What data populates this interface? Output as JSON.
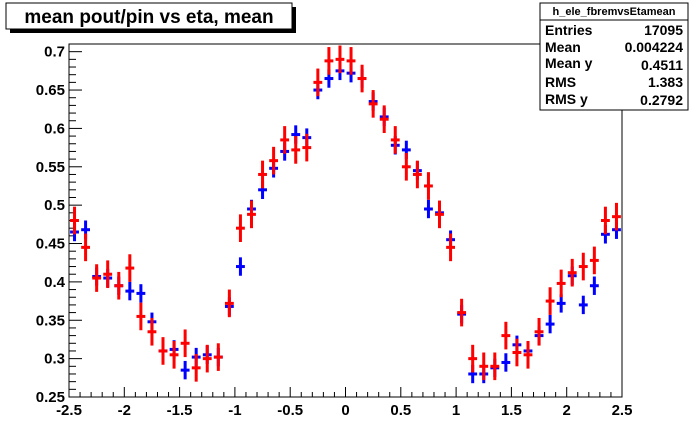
{
  "chart_data": {
    "type": "scatter",
    "title": "mean pout/pin vs eta, mean",
    "xlabel": "",
    "ylabel": "",
    "xlim": [
      -2.5,
      2.5
    ],
    "ylim": [
      0.25,
      0.71
    ],
    "x_ticks": [
      -2.5,
      -2,
      -1.5,
      -1,
      -0.5,
      0,
      0.5,
      1,
      1.5,
      2,
      2.5
    ],
    "x_tick_labels": [
      "-2.5",
      "-2",
      "-1.5",
      "-1",
      "-0.5",
      "0",
      "0.5",
      "1",
      "1.5",
      "2",
      "2.5"
    ],
    "y_ticks": [
      0.25,
      0.3,
      0.35,
      0.4,
      0.45,
      0.5,
      0.55,
      0.6,
      0.65,
      0.7
    ],
    "y_tick_labels": [
      "0.25",
      "0.3",
      "0.35",
      "0.4",
      "0.45",
      "0.5",
      "0.55",
      "0.6",
      "0.65",
      "0.7"
    ],
    "grid": false,
    "legend": "none",
    "x_half_width": 0.04,
    "series": [
      {
        "color": "#0000ff",
        "x": [
          -2.45,
          -2.35,
          -2.25,
          -2.15,
          -2.05,
          -1.95,
          -1.85,
          -1.75,
          -1.65,
          -1.55,
          -1.45,
          -1.35,
          -1.25,
          -1.15,
          -1.05,
          -0.95,
          -0.85,
          -0.75,
          -0.65,
          -0.55,
          -0.45,
          -0.35,
          -0.25,
          -0.15,
          -0.05,
          0.05,
          0.15,
          0.25,
          0.35,
          0.45,
          0.55,
          0.65,
          0.75,
          0.85,
          0.95,
          1.05,
          1.15,
          1.25,
          1.35,
          1.45,
          1.55,
          1.65,
          1.75,
          1.85,
          1.95,
          2.05,
          2.15,
          2.25,
          2.35,
          2.45
        ],
        "y": [
          0.465,
          0.468,
          0.407,
          0.405,
          0.395,
          0.388,
          0.385,
          0.348,
          0.31,
          0.312,
          0.285,
          0.302,
          0.305,
          0.302,
          0.368,
          0.42,
          0.495,
          0.52,
          0.548,
          0.57,
          0.592,
          0.588,
          0.65,
          0.665,
          0.675,
          0.672,
          0.665,
          0.635,
          0.615,
          0.578,
          0.572,
          0.545,
          0.495,
          0.49,
          0.455,
          0.358,
          0.28,
          0.28,
          0.288,
          0.295,
          0.318,
          0.31,
          0.33,
          0.345,
          0.372,
          0.408,
          0.37,
          0.395,
          0.462,
          0.468
        ],
        "err": [
          0.012,
          0.012,
          0.012,
          0.012,
          0.012,
          0.012,
          0.012,
          0.012,
          0.012,
          0.012,
          0.012,
          0.012,
          0.012,
          0.012,
          0.012,
          0.012,
          0.012,
          0.012,
          0.012,
          0.012,
          0.012,
          0.012,
          0.012,
          0.012,
          0.012,
          0.012,
          0.012,
          0.012,
          0.012,
          0.012,
          0.012,
          0.012,
          0.012,
          0.012,
          0.012,
          0.012,
          0.012,
          0.012,
          0.012,
          0.012,
          0.012,
          0.012,
          0.012,
          0.012,
          0.012,
          0.012,
          0.012,
          0.012,
          0.012,
          0.012
        ]
      },
      {
        "color": "#ff0000",
        "x": [
          -2.45,
          -2.35,
          -2.25,
          -2.15,
          -2.05,
          -1.95,
          -1.85,
          -1.75,
          -1.65,
          -1.55,
          -1.45,
          -1.35,
          -1.25,
          -1.15,
          -1.05,
          -0.95,
          -0.85,
          -0.75,
          -0.65,
          -0.55,
          -0.45,
          -0.35,
          -0.25,
          -0.15,
          -0.05,
          0.05,
          0.15,
          0.25,
          0.35,
          0.45,
          0.55,
          0.65,
          0.75,
          0.85,
          0.95,
          1.05,
          1.15,
          1.25,
          1.35,
          1.45,
          1.55,
          1.65,
          1.75,
          1.85,
          1.95,
          2.05,
          2.15,
          2.25,
          2.35,
          2.45
        ],
        "y": [
          0.48,
          0.445,
          0.405,
          0.41,
          0.395,
          0.418,
          0.355,
          0.335,
          0.31,
          0.305,
          0.32,
          0.288,
          0.3,
          0.302,
          0.372,
          0.47,
          0.488,
          0.54,
          0.558,
          0.585,
          0.572,
          0.575,
          0.66,
          0.688,
          0.69,
          0.688,
          0.665,
          0.632,
          0.612,
          0.585,
          0.55,
          0.54,
          0.525,
          0.488,
          0.445,
          0.36,
          0.3,
          0.29,
          0.29,
          0.33,
          0.308,
          0.305,
          0.335,
          0.375,
          0.398,
          0.412,
          0.42,
          0.428,
          0.48,
          0.485
        ],
        "err": [
          0.018,
          0.018,
          0.018,
          0.018,
          0.018,
          0.018,
          0.018,
          0.018,
          0.018,
          0.018,
          0.018,
          0.018,
          0.018,
          0.018,
          0.018,
          0.018,
          0.018,
          0.018,
          0.018,
          0.018,
          0.018,
          0.018,
          0.018,
          0.018,
          0.018,
          0.018,
          0.018,
          0.018,
          0.018,
          0.018,
          0.018,
          0.018,
          0.018,
          0.018,
          0.018,
          0.018,
          0.018,
          0.018,
          0.018,
          0.018,
          0.018,
          0.018,
          0.018,
          0.018,
          0.018,
          0.018,
          0.018,
          0.018,
          0.018,
          0.018
        ]
      }
    ]
  },
  "stats": {
    "title": "h_ele_fbremvsEtamean",
    "rows": [
      {
        "label": "Entries",
        "value": "17095"
      },
      {
        "label": "Mean",
        "value": "0.004224"
      },
      {
        "label": "Mean y",
        "value": "0.4511"
      },
      {
        "label": "RMS",
        "value": "1.383"
      },
      {
        "label": "RMS y",
        "value": "0.2792"
      }
    ]
  }
}
